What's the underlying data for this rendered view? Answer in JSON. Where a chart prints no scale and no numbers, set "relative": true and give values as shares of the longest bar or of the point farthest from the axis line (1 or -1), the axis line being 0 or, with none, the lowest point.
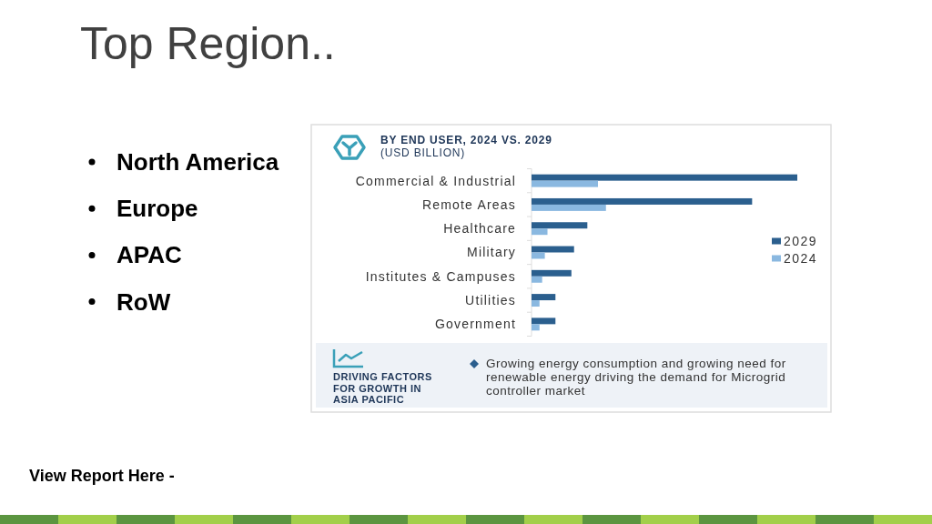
{
  "chart_data": {
    "type": "bar",
    "orientation": "horizontal",
    "relative": true,
    "title": "BY END USER, 2024 VS. 2029",
    "subtitle": "(USD BILLION)",
    "categories": [
      "Commercial & Industrial",
      "Remote Areas",
      "Healthcare",
      "Military",
      "Institutes & Campuses",
      "Utilities",
      "Government"
    ],
    "series": [
      {
        "name": "2029",
        "color": "#2b5f8e",
        "values": [
          1,
          0.83,
          0.21,
          0.16,
          0.15,
          0.09,
          0.09
        ]
      },
      {
        "name": "2024",
        "color": "#8ab8e0",
        "values": [
          0.25,
          0.28,
          0.06,
          0.05,
          0.04,
          0.03,
          0.03
        ]
      }
    ],
    "legend": "right",
    "annotations": [
      "Top Region..",
      "North America",
      "Europe",
      "APAC",
      "RoW",
      "DRIVING FACTORS FOR GROWTH IN ASIA PACIFIC",
      "Growing energy consumption and growing need for renewable energy driving the demand for Microgrid controller market",
      "View Report Here -"
    ]
  }
}
